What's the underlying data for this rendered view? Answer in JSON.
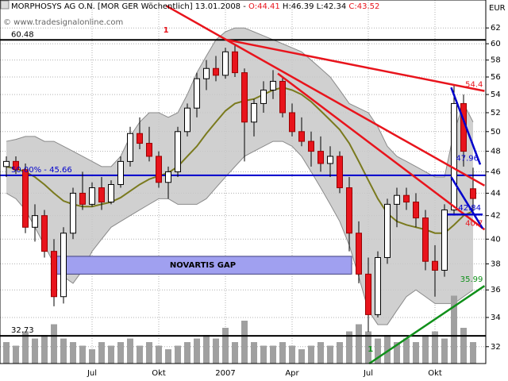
{
  "header": {
    "symbol": "MORPHOSYS AG O.N. [MOR GER  Wöchentlich] 13.01.2008 -",
    "open": "O:44.41",
    "high": "H:46.39",
    "low": "L:42.34",
    "close": "C:43.52",
    "watermark": "© www.tradesignalonline.com",
    "currency": "EUR"
  },
  "chart_data": {
    "type": "candlestick",
    "log": true,
    "grid": true,
    "ylim": [
      30.9,
      65.7
    ],
    "yticks": [
      32,
      34,
      36,
      38,
      40,
      42,
      44,
      46,
      48,
      50,
      52,
      54,
      56,
      58,
      60,
      62
    ],
    "categories": [
      null,
      null,
      null,
      null,
      null,
      null,
      null,
      null,
      null,
      "Jul",
      null,
      null,
      null,
      null,
      null,
      null,
      "Okt",
      null,
      null,
      null,
      null,
      null,
      null,
      "2007",
      null,
      null,
      null,
      null,
      null,
      null,
      "Apr",
      null,
      null,
      null,
      null,
      null,
      null,
      null,
      "Jul",
      null,
      null,
      null,
      null,
      null,
      null,
      "Okt",
      null,
      null,
      null,
      null
    ],
    "up_color": "#ffffff",
    "down_color": "#e8141c",
    "open": [
      46.5,
      47,
      46.2,
      41,
      42,
      39,
      35.5,
      40.5,
      44,
      43,
      44.5,
      43.2,
      44.8,
      47,
      49.8,
      48.8,
      47.5,
      45,
      46,
      50,
      52.5,
      55.8,
      57,
      56.2,
      59,
      56.5,
      51,
      53,
      54.5,
      55.5,
      52,
      50,
      49,
      48,
      46.8,
      47.5,
      44.5,
      40.5,
      37.2,
      34.2,
      38.5,
      43,
      43.8,
      43.2,
      41.8,
      38.2,
      37.5,
      42.5,
      53,
      44.41
    ],
    "high": [
      47.5,
      47.5,
      46.8,
      43,
      42.5,
      40,
      41,
      44.5,
      46,
      45,
      45.5,
      45.2,
      47.5,
      50.5,
      51.5,
      50.5,
      48,
      46.5,
      50.5,
      53,
      56.5,
      58,
      58.5,
      59.5,
      60,
      57,
      53.5,
      55.5,
      56.8,
      56,
      53,
      51.5,
      50,
      49.5,
      48.5,
      48,
      45.5,
      41.5,
      38.5,
      39,
      43.5,
      44.5,
      44.5,
      44,
      42.5,
      39.5,
      43,
      55,
      54,
      46.39
    ],
    "low": [
      45.5,
      45.8,
      40.5,
      39.8,
      38.5,
      34.8,
      35,
      40,
      42.5,
      42.8,
      42.5,
      43,
      44.5,
      46.5,
      48.2,
      47,
      44.5,
      43.5,
      45.5,
      49.5,
      51.5,
      54.5,
      55.5,
      55.8,
      56,
      47,
      49.5,
      52,
      53.5,
      51.5,
      49.5,
      48.5,
      46.5,
      46,
      45.5,
      44,
      39,
      36.5,
      33,
      34,
      38,
      41,
      42.5,
      41,
      37.5,
      35.5,
      37,
      42,
      46.5,
      42.34
    ],
    "close": [
      47,
      46.2,
      41,
      42,
      39,
      35.5,
      40.5,
      44,
      43,
      44.5,
      43.2,
      44.8,
      47,
      49.8,
      48.8,
      47.5,
      45,
      46,
      50,
      52.5,
      55.8,
      57,
      56.2,
      59,
      56.5,
      51,
      53,
      54.5,
      55.5,
      52,
      50,
      49,
      48,
      46.8,
      47.5,
      44.5,
      40.5,
      37.2,
      34.2,
      38.5,
      43,
      43.8,
      43.2,
      41.8,
      38.2,
      37.5,
      42.5,
      53,
      48,
      43.52
    ],
    "bollinger_upper": [
      49,
      49.2,
      49.5,
      49.5,
      49,
      49,
      48.5,
      48,
      47.5,
      47,
      46.5,
      46.5,
      47.5,
      49.5,
      51,
      52,
      52,
      51.5,
      52,
      54,
      56.5,
      58.5,
      60.5,
      61.5,
      62,
      62,
      61.5,
      61,
      60.5,
      60,
      59.5,
      59,
      58,
      57,
      56,
      54.5,
      53,
      52.5,
      52,
      50.5,
      48.5,
      47.5,
      47,
      46.5,
      46,
      45.5,
      45.5,
      50,
      53,
      51
    ],
    "bollinger_lower": [
      44,
      43.5,
      42.5,
      41,
      39.5,
      38,
      37,
      36.5,
      37.5,
      39,
      40,
      41,
      41.5,
      42,
      42.5,
      43,
      43.5,
      43.5,
      43,
      43,
      43,
      43.5,
      44.5,
      45.5,
      46.5,
      47.5,
      48,
      48.5,
      49,
      49,
      48.5,
      47.5,
      46,
      44.5,
      43,
      41.5,
      39.5,
      37,
      34.5,
      33.5,
      33.5,
      34.5,
      35.5,
      36,
      35.5,
      35,
      35,
      35,
      35.5,
      36
    ],
    "moving_average": [
      46.5,
      46.3,
      46,
      45.5,
      44.8,
      44,
      43.3,
      43,
      42.8,
      42.8,
      43,
      43.2,
      43.6,
      44.2,
      44.8,
      45.3,
      45.6,
      45.9,
      46.5,
      47.5,
      48.5,
      49.8,
      51,
      52.2,
      53,
      53.3,
      53.5,
      54,
      54.5,
      54.8,
      54.5,
      54,
      53.2,
      52.2,
      51.2,
      50.2,
      48.8,
      47,
      45.2,
      43.5,
      42.2,
      41.5,
      41.2,
      41,
      40.8,
      40.5,
      40.5,
      41.2,
      42,
      42.4
    ],
    "band_color": "#c8c8c8",
    "ma_color": "#7a7a1e",
    "volume": [
      30,
      25,
      45,
      35,
      40,
      55,
      35,
      30,
      25,
      20,
      30,
      25,
      30,
      35,
      25,
      30,
      25,
      20,
      25,
      30,
      35,
      40,
      35,
      50,
      30,
      60,
      30,
      25,
      25,
      30,
      25,
      20,
      25,
      30,
      25,
      30,
      45,
      55,
      45,
      35,
      40,
      30,
      35,
      30,
      40,
      45,
      35,
      95,
      50,
      30
    ],
    "volume_lim": [
      0,
      100
    ],
    "volume_color": "#a0a0a0",
    "levels": [
      {
        "value": 60.48,
        "color": "#000000"
      },
      {
        "value": 32.73,
        "color": "#000000"
      },
      {
        "value": 45.66,
        "label": "50.00% - 45.66",
        "color": "#0000cc"
      }
    ],
    "trendlines": [
      {
        "color": "#e8141c",
        "x": [
          16.8,
          50.2
        ],
        "y": [
          64.9,
          44.7
        ],
        "text": "1"
      },
      {
        "color": "#e8141c",
        "x": [
          23.1,
          50.2
        ],
        "y": [
          60.5,
          54.4
        ],
        "end_label": 54.4
      },
      {
        "color": "#e8141c",
        "x": [
          28.5,
          50.2
        ],
        "y": [
          56.4,
          40.8
        ],
        "end_label": 40.7
      },
      {
        "color": "#0000cc",
        "x": [
          46.7,
          49.75
        ],
        "y": [
          54.8,
          46.7
        ],
        "end_label": 47.96
      },
      {
        "color": "#0000cc",
        "x": [
          46.7,
          50
        ],
        "y": [
          45.5,
          40.9
        ]
      },
      {
        "color": "#0000cc",
        "x": [
          46.3,
          50
        ],
        "y": [
          42.1,
          42.1
        ],
        "end_label": 42.84
      },
      {
        "color": "#10901a",
        "x": [
          38.1,
          50.2
        ],
        "y": [
          30.9,
          36.3
        ],
        "end_label": 35.99,
        "text": "1"
      }
    ],
    "gap": {
      "label": "NOVARTIS GAP",
      "x": [
        5,
        36.25
      ],
      "y": [
        38.6,
        37.2
      ],
      "color": "#a0a0f0"
    }
  }
}
